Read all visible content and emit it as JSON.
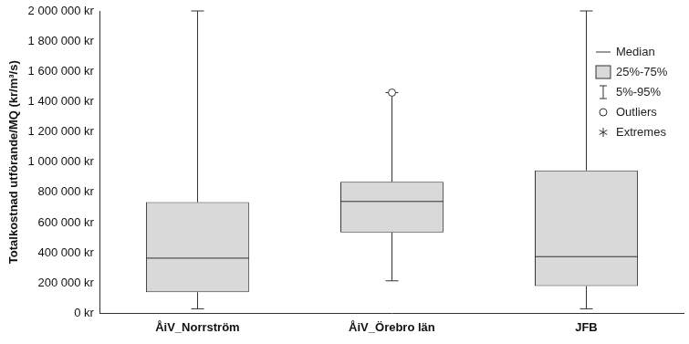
{
  "chart_data": {
    "type": "box",
    "y_label": "Totalkostnad utförande/MQ (kr/m³/s)",
    "categories": [
      "ÅiV_Norrström",
      "ÅiV_Örebro län",
      "JFB"
    ],
    "boxes": [
      {
        "min": 30000,
        "q1": 140000,
        "median": 365000,
        "q3": 735000,
        "max": 2000000,
        "outliers": []
      },
      {
        "min": 215000,
        "q1": 535000,
        "median": 740000,
        "q3": 870000,
        "max": 1460000,
        "outliers": [
          1460000
        ]
      },
      {
        "min": 30000,
        "q1": 180000,
        "median": 375000,
        "q3": 945000,
        "max": 2000000,
        "outliers": []
      }
    ],
    "color": "#d9d9d9",
    "ylim": [
      0,
      2000000
    ],
    "yticks": [
      {
        "value": 0,
        "label": "0 kr"
      },
      {
        "value": 200000,
        "label": "200 000 kr"
      },
      {
        "value": 400000,
        "label": "400 000 kr"
      },
      {
        "value": 600000,
        "label": "600 000 kr"
      },
      {
        "value": 800000,
        "label": "800 000 kr"
      },
      {
        "value": 1000000,
        "label": "1 000 000 kr"
      },
      {
        "value": 1200000,
        "label": "1 200 000 kr"
      },
      {
        "value": 1400000,
        "label": "1 400 000 kr"
      },
      {
        "value": 1600000,
        "label": "1 600 000 kr"
      },
      {
        "value": 1800000,
        "label": "1 800 000 kr"
      },
      {
        "value": 2000000,
        "label": "2 000 000 kr"
      }
    ],
    "grid": false,
    "legend": "upper right",
    "legend_labels": [
      "Median",
      "25%-75%",
      "5%-95%",
      "Outliers",
      "Extremes"
    ]
  }
}
